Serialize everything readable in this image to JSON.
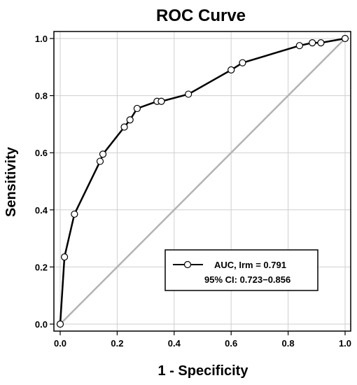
{
  "chart_data": {
    "type": "line",
    "title": "ROC Curve",
    "xlabel": "1 - Specificity",
    "ylabel": "Sensitivity",
    "xlim": [
      0,
      1
    ],
    "ylim": [
      0,
      1
    ],
    "x_ticks": [
      "0.0",
      "0.2",
      "0.4",
      "0.6",
      "0.8",
      "1.0"
    ],
    "y_ticks": [
      "0.0",
      "0.2",
      "0.4",
      "0.6",
      "0.8",
      "1.0"
    ],
    "grid": true,
    "legend_position": "bottom-right",
    "series": [
      {
        "name": "AUC, Irm = 0.791",
        "x": [
          0.0,
          0.015,
          0.05,
          0.14,
          0.15,
          0.225,
          0.245,
          0.27,
          0.34,
          0.355,
          0.45,
          0.6,
          0.64,
          0.84,
          0.885,
          0.915,
          1.0
        ],
        "y": [
          0.0,
          0.235,
          0.385,
          0.57,
          0.595,
          0.69,
          0.715,
          0.755,
          0.78,
          0.78,
          0.805,
          0.89,
          0.915,
          0.975,
          0.985,
          0.985,
          1.0
        ],
        "color": "#000000"
      }
    ],
    "reference_line": {
      "x": [
        0,
        1
      ],
      "y": [
        0,
        1
      ],
      "color": "#b3b3b3"
    },
    "legend": {
      "line1": "AUC, Irm = 0.791",
      "line2": "95% CI: 0.723−0.856"
    }
  }
}
